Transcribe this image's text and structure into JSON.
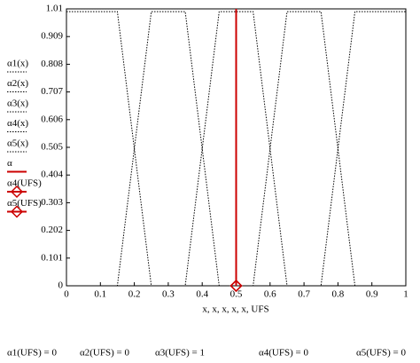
{
  "chart_data": {
    "type": "line",
    "x_label": "x, x, x, x, x, UFS",
    "xlim": [
      0,
      1
    ],
    "xticks": [
      0,
      0.1,
      0.2,
      0.3,
      0.4,
      0.5,
      0.6,
      0.7,
      0.8,
      0.9,
      1
    ],
    "ylim": [
      0,
      1.01
    ],
    "yticks": [
      0,
      0.101,
      0.202,
      0.303,
      0.404,
      0.505,
      0.606,
      0.707,
      0.808,
      0.909,
      1.01
    ],
    "series": [
      {
        "name": "α1(x)",
        "color": "#000000",
        "style": "dotted",
        "x": [
          0,
          0.15,
          0.25,
          1
        ],
        "values": [
          1,
          1,
          0,
          0
        ]
      },
      {
        "name": "α2(x)",
        "color": "#000000",
        "style": "dotted",
        "x": [
          0,
          0.15,
          0.25,
          0.35,
          0.45,
          1
        ],
        "values": [
          0,
          0,
          1,
          1,
          0,
          0
        ]
      },
      {
        "name": "α3(x)",
        "color": "#000000",
        "style": "dotted",
        "x": [
          0,
          0.35,
          0.45,
          0.55,
          0.65,
          1
        ],
        "values": [
          0,
          0,
          1,
          1,
          0,
          0
        ]
      },
      {
        "name": "α4(x)",
        "color": "#000000",
        "style": "dotted",
        "x": [
          0,
          0.55,
          0.65,
          0.75,
          0.85,
          1
        ],
        "values": [
          0,
          0,
          1,
          1,
          0,
          0
        ]
      },
      {
        "name": "α5(x)",
        "color": "#000000",
        "style": "dotted",
        "x": [
          0,
          0.75,
          0.85,
          1
        ],
        "values": [
          0,
          0,
          1,
          1
        ]
      },
      {
        "name": "α",
        "color": "#cc0000",
        "style": "solid",
        "x": [
          0.5,
          0.5
        ],
        "values": [
          0,
          1.01
        ]
      },
      {
        "name": "α4(UFS)",
        "color": "#cc0000",
        "style": "marker",
        "x": [
          0.5
        ],
        "values": [
          0
        ]
      },
      {
        "name": "α5(UFS)",
        "color": "#cc0000",
        "style": "marker",
        "x": [
          0.5
        ],
        "values": [
          0
        ]
      }
    ],
    "results": [
      "α1(UFS) = 0",
      "α2(UFS) = 0",
      "α3(UFS) = 1",
      "α4(UFS) = 0",
      "α5(UFS) = 0"
    ]
  }
}
